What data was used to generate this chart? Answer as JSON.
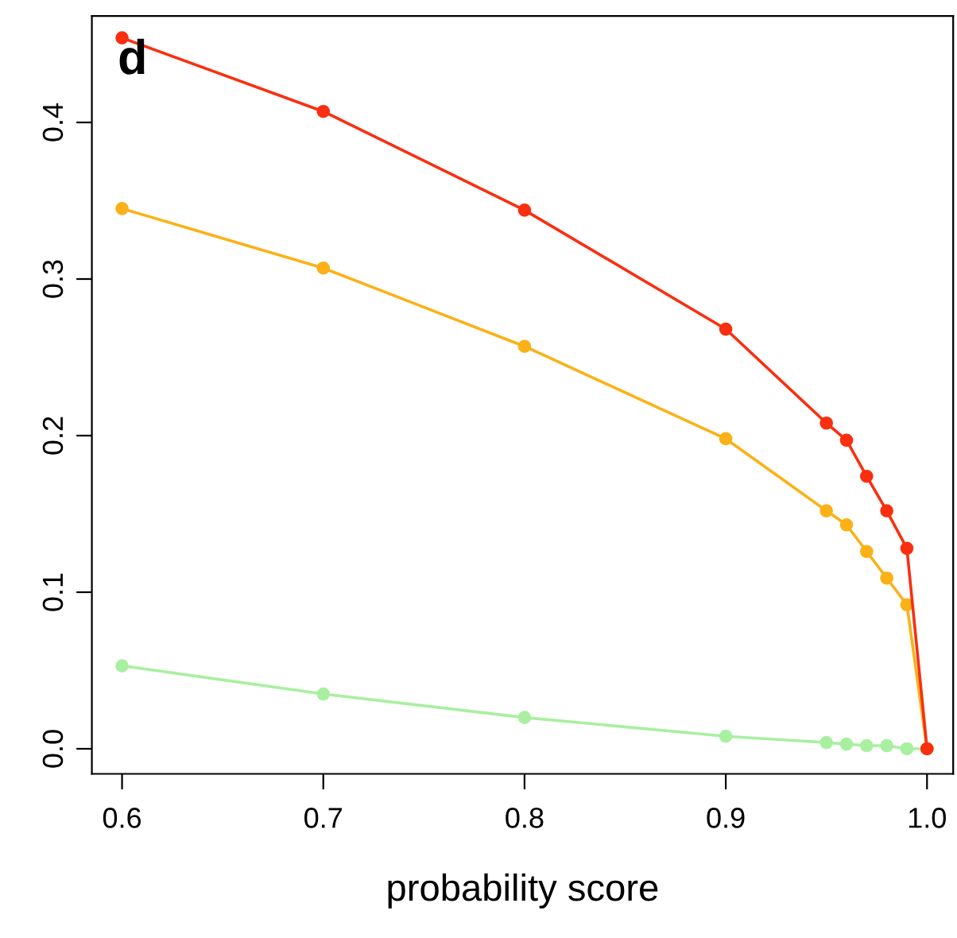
{
  "chart_data": {
    "type": "line",
    "xlabel": "probability score",
    "annotations": [
      "d"
    ],
    "x": [
      0.6,
      0.7,
      0.8,
      0.9,
      0.95,
      0.96,
      0.97,
      0.98,
      0.99,
      1.0
    ],
    "series": [
      {
        "color": "#a8f0a0",
        "values": [
          0.053,
          0.035,
          0.02,
          0.008,
          0.004,
          0.003,
          0.002,
          0.002,
          0.0,
          0.0
        ]
      },
      {
        "color": "#fbb117",
        "values": [
          0.345,
          0.307,
          0.257,
          0.198,
          0.152,
          0.143,
          0.126,
          0.109,
          0.092,
          0.0
        ]
      },
      {
        "color": "#f92f10",
        "values": [
          0.454,
          0.407,
          0.344,
          0.268,
          0.208,
          0.197,
          0.174,
          0.152,
          0.128,
          0.0
        ]
      }
    ],
    "xlim": [
      0.585,
      1.013
    ],
    "ylim": [
      -0.016,
      0.468
    ],
    "xticks": [
      0.6,
      0.7,
      0.8,
      0.9,
      {
        "value": 1,
        "label": "1.0"
      }
    ],
    "yticks": [
      {
        "value": 0,
        "label": "0.0"
      },
      0.1,
      0.2,
      0.3,
      0.4
    ],
    "marker": "circle",
    "line_style": "solid",
    "grid": false,
    "legend": false
  }
}
